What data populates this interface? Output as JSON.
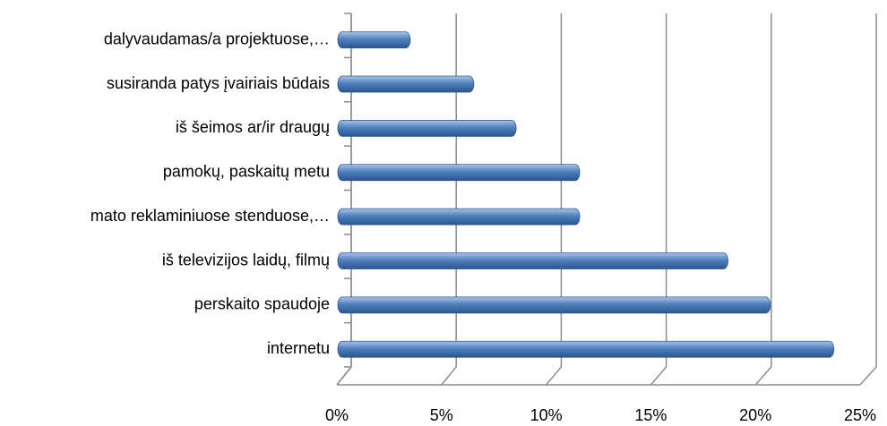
{
  "chart_data": {
    "type": "bar",
    "orientation": "horizontal",
    "categories": [
      "dalyvaudamas/a projektuose,…",
      "susiranda patys įvairiais būdais",
      "iš šeimos ar/ir draugų",
      "pamokų, paskaitų metu",
      "mato reklaminiuose stenduose,…",
      "iš televizijos laidų, filmų",
      "perskaito spaudoje",
      "internetu"
    ],
    "values": [
      3,
      6,
      8,
      11,
      11,
      18,
      20,
      23
    ],
    "color": "#4f81bd",
    "xlim": [
      0,
      25
    ],
    "xticks": [
      {
        "value": 0,
        "label": "0%"
      },
      {
        "value": 5,
        "label": "5%"
      },
      {
        "value": 10,
        "label": "10%"
      },
      {
        "value": 15,
        "label": "15%"
      },
      {
        "value": 20,
        "label": "20%"
      },
      {
        "value": 25,
        "label": "25%"
      }
    ],
    "grid": true
  }
}
